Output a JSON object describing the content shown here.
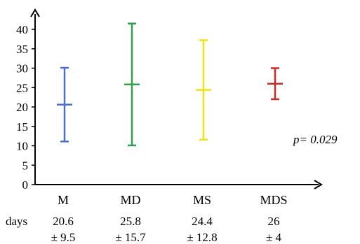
{
  "chart_data": {
    "type": "errorbar",
    "categories": [
      "M",
      "MD",
      "MS",
      "MDS"
    ],
    "series": [
      {
        "category": "M",
        "mean": 20.6,
        "sd": 9.5,
        "color": "#4a6fd1",
        "mean_text": "20.6",
        "sd_text": "± 9.5"
      },
      {
        "category": "MD",
        "mean": 25.8,
        "sd": 15.7,
        "color": "#2ea04a",
        "mean_text": "25.8",
        "sd_text": "± 15.7"
      },
      {
        "category": "MS",
        "mean": 24.4,
        "sd": 12.8,
        "color": "#f0e21a",
        "mean_text": "24.4",
        "sd_text": "± 12.8"
      },
      {
        "category": "MDS",
        "mean": 26,
        "sd": 4,
        "color": "#cc2a2a",
        "mean_text": "26",
        "sd_text": "± 4"
      }
    ],
    "yticks": [
      0,
      5,
      10,
      15,
      20,
      25,
      30,
      35,
      40
    ],
    "ylim": [
      0,
      42
    ],
    "row_label": "days",
    "annotation": "p= 0.029",
    "grid": false
  }
}
